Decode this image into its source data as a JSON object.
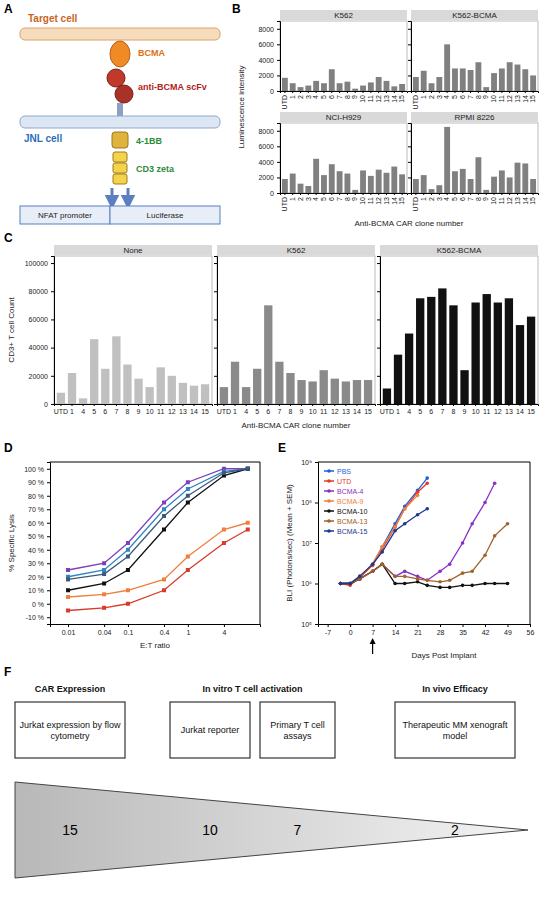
{
  "panel_letters": [
    "A",
    "B",
    "C",
    "D",
    "E",
    "F"
  ],
  "diagram_a": {
    "target_cell": "Target cell",
    "bcma": "BCMA",
    "scfv": "anti-BCMA scFv",
    "jnl_cell": "JNL cell",
    "costim": "4-1BB",
    "cd3": "CD3 zeta",
    "promoter": "NFAT promoter",
    "reporter": "Luciferase"
  },
  "chart_data": [
    {
      "type": "bar",
      "title": "K562",
      "categories": [
        "UTD",
        "1",
        "2",
        "3",
        "4",
        "5",
        "6",
        "7",
        "8",
        "9",
        "10",
        "11",
        "12",
        "13",
        "14",
        "15"
      ],
      "values": [
        1700,
        1000,
        500,
        700,
        1300,
        1000,
        2800,
        1000,
        1200,
        300,
        700,
        1100,
        1800,
        1300,
        600,
        900
      ],
      "color": "#808080",
      "ylim": [
        0,
        9000
      ],
      "yticks": [
        0,
        2000,
        4000,
        6000,
        8000
      ],
      "y_label": "Luminescence intensity",
      "x_label": "Anti-BCMA CAR clone number"
    },
    {
      "type": "bar",
      "title": "K562-BCMA",
      "categories": [
        "UTD",
        "1",
        "2",
        "3",
        "4",
        "5",
        "6",
        "7",
        "8",
        "9",
        "10",
        "11",
        "12",
        "13",
        "14",
        "15"
      ],
      "values": [
        1800,
        2600,
        1000,
        1800,
        6000,
        2900,
        2900,
        2700,
        3700,
        500,
        2300,
        2900,
        3700,
        3400,
        2800,
        2000
      ],
      "color": "#808080",
      "ylim": [
        0,
        9000
      ],
      "yticks": [
        0,
        2000,
        4000,
        6000,
        8000
      ],
      "tick_labels": "x"
    },
    {
      "type": "bar",
      "title": "NCI-H929",
      "categories": [
        "UTD",
        "1",
        "2",
        "3",
        "4",
        "5",
        "6",
        "7",
        "8",
        "9",
        "10",
        "11",
        "12",
        "13",
        "14",
        "15"
      ],
      "values": [
        1800,
        2500,
        1200,
        900,
        4400,
        2300,
        3700,
        2800,
        2500,
        400,
        2900,
        2200,
        3000,
        2600,
        3400,
        2400
      ],
      "color": "#808080",
      "ylim": [
        0,
        9000
      ],
      "yticks": [
        0,
        2000,
        4000,
        6000,
        8000
      ]
    },
    {
      "type": "bar",
      "title": "RPMI 8226",
      "categories": [
        "UTD",
        "1",
        "2",
        "3",
        "4",
        "5",
        "6",
        "7",
        "8",
        "9",
        "10",
        "11",
        "12",
        "13",
        "14",
        "15"
      ],
      "values": [
        1800,
        2300,
        500,
        1000,
        8500,
        2800,
        3100,
        1800,
        4600,
        400,
        2100,
        2900,
        2000,
        3900,
        3800,
        1800
      ],
      "color": "#808080",
      "ylim": [
        0,
        9000
      ],
      "yticks": [
        0,
        2000,
        4000,
        6000,
        8000
      ],
      "tick_labels": "x"
    },
    {
      "type": "bar",
      "title": "None",
      "categories": [
        "UTD",
        "1",
        "4",
        "5",
        "6",
        "7",
        "8",
        "9",
        "10",
        "11",
        "12",
        "13",
        "14",
        "15"
      ],
      "values": [
        8000,
        22000,
        4000,
        46000,
        25000,
        48000,
        28000,
        18000,
        12000,
        26000,
        20000,
        15000,
        13000,
        14000
      ],
      "color": "#c0c0c0",
      "ylim": [
        0,
        105000
      ],
      "yticks": [
        0,
        20000,
        40000,
        60000,
        80000,
        100000
      ],
      "y_label": "CD3+ T cell Count",
      "x_label": "Anti-BCMA CAR clone number"
    },
    {
      "type": "bar",
      "title": "K562",
      "categories": [
        "UTD",
        "1",
        "4",
        "5",
        "6",
        "7",
        "8",
        "9",
        "10",
        "11",
        "12",
        "13",
        "14",
        "15"
      ],
      "values": [
        12000,
        30000,
        12000,
        25000,
        70000,
        30000,
        22000,
        17000,
        16000,
        24000,
        18000,
        16000,
        17000,
        17000
      ],
      "color": "#8a8a8a",
      "ylim": [
        0,
        105000
      ],
      "yticks": [
        0,
        20000,
        40000,
        60000,
        80000,
        100000
      ],
      "tick_labels": "x"
    },
    {
      "type": "bar",
      "title": "K562-BCMA",
      "categories": [
        "UTD",
        "1",
        "4",
        "5",
        "6",
        "7",
        "8",
        "9",
        "10",
        "11",
        "12",
        "13",
        "14",
        "15"
      ],
      "values": [
        11000,
        35000,
        50000,
        75000,
        76000,
        82000,
        70000,
        24000,
        72000,
        78000,
        72000,
        75000,
        56000,
        62000
      ],
      "color": "#111111",
      "ylim": [
        0,
        105000
      ],
      "yticks": [
        0,
        20000,
        40000,
        60000,
        80000,
        100000
      ],
      "tick_labels": "x"
    },
    {
      "type": "line",
      "marker": "square",
      "log": "x",
      "x": [
        0.01,
        0.04,
        0.1,
        0.4,
        1,
        4,
        10
      ],
      "series": [
        {
          "color": "#7b3fbf",
          "values": [
            25,
            30,
            45,
            75,
            90,
            100,
            100
          ]
        },
        {
          "color": "#2f86c1",
          "values": [
            20,
            25,
            40,
            70,
            85,
            98,
            100
          ]
        },
        {
          "color": "#111111",
          "values": [
            10,
            15,
            25,
            55,
            75,
            95,
            100
          ]
        },
        {
          "color": "#3b5a7a",
          "values": [
            18,
            22,
            35,
            65,
            80,
            97,
            100
          ]
        },
        {
          "color": "#f07f3c",
          "values": [
            5,
            7,
            10,
            18,
            35,
            55,
            60
          ]
        },
        {
          "color": "#d93a2b",
          "values": [
            -5,
            -3,
            0,
            10,
            25,
            45,
            55
          ]
        }
      ],
      "xlim": [
        0.005,
        16
      ],
      "xticks": [
        0.01,
        0.04,
        0.1,
        0.4,
        1,
        4
      ],
      "ylim": [
        -15,
        105
      ],
      "yticks": [
        {
          "value": -10,
          "label": "-10 %"
        },
        {
          "value": 0,
          "label": "0 %"
        },
        {
          "value": 10,
          "label": "10 %"
        },
        {
          "value": 20,
          "label": "20 %"
        },
        {
          "value": 30,
          "label": "30 %"
        },
        {
          "value": 40,
          "label": "40 %"
        },
        {
          "value": 50,
          "label": "50 %"
        },
        {
          "value": 60,
          "label": "60 %"
        },
        {
          "value": 70,
          "label": "70 %"
        },
        {
          "value": 80,
          "label": "80 %"
        },
        {
          "value": 90,
          "label": "90 %"
        },
        {
          "value": 100,
          "label": "100 %"
        }
      ],
      "y_label": "% Specific Lysis",
      "x_label": "E:T ratio"
    },
    {
      "type": "line",
      "marker": "circle",
      "log": "y",
      "legend": "top-left",
      "x": [
        -3,
        0,
        3,
        7,
        10,
        14,
        17,
        21,
        24,
        28,
        31,
        35,
        38,
        42,
        45,
        49
      ],
      "series": [
        {
          "name": "PBS",
          "color": "#1f5fd6",
          "values": [
            1000000.0,
            1000000.0,
            1500000.0,
            3000000.0,
            8000000.0,
            30000000.0,
            80000000.0,
            200000000.0,
            400000000.0,
            null,
            null,
            null,
            null,
            null,
            null,
            null
          ]
        },
        {
          "name": "UTD",
          "color": "#e8392b",
          "values": [
            1000000.0,
            900000.0,
            1400000.0,
            2800000.0,
            7000000.0,
            25000000.0,
            70000000.0,
            180000000.0,
            300000000.0,
            null,
            null,
            null,
            null,
            null,
            null,
            null
          ]
        },
        {
          "name": "BCMA-4",
          "color": "#8b2fc9",
          "values": [
            1000000.0,
            1000000.0,
            1300000.0,
            2000000.0,
            3000000.0,
            1500000.0,
            2000000.0,
            1500000.0,
            1200000.0,
            2000000.0,
            3000000.0,
            10000000.0,
            30000000.0,
            100000000.0,
            300000000.0,
            null
          ]
        },
        {
          "name": "BCMA-9",
          "color": "#f07f3c",
          "values": [
            1000000.0,
            1000000.0,
            1500000.0,
            3000000.0,
            8000000.0,
            25000000.0,
            70000000.0,
            150000000.0,
            null,
            null,
            null,
            null,
            null,
            null,
            null,
            null
          ]
        },
        {
          "name": "BCMA-10",
          "color": "#111111",
          "values": [
            1000000.0,
            1000000.0,
            1300000.0,
            2000000.0,
            3000000.0,
            1000000.0,
            1000000.0,
            1100000.0,
            900000.0,
            800000.0,
            800000.0,
            900000.0,
            900000.0,
            1000000.0,
            1000000.0,
            1000000.0
          ]
        },
        {
          "name": "BCMA-13",
          "color": "#a0632a",
          "values": [
            1000000.0,
            1000000.0,
            1300000.0,
            2000000.0,
            3000000.0,
            1500000.0,
            1500000.0,
            1300000.0,
            1200000.0,
            1100000.0,
            1200000.0,
            1800000.0,
            2000000.0,
            5000000.0,
            15000000.0,
            30000000.0
          ]
        },
        {
          "name": "BCMA-15",
          "color": "#1b3a8c",
          "values": [
            1000000.0,
            1000000.0,
            1500000.0,
            3000000.0,
            6000000.0,
            20000000.0,
            30000000.0,
            50000000.0,
            70000000.0,
            null,
            null,
            null,
            null,
            null,
            null,
            null
          ]
        }
      ],
      "xlim": [
        -10,
        56
      ],
      "xticks": [
        -7,
        0,
        7,
        14,
        21,
        28,
        35,
        42,
        49,
        56
      ],
      "ylim": [
        100000.0,
        1000000000.0
      ],
      "yticks": [
        {
          "value": 100000.0,
          "label": "10⁵"
        },
        {
          "value": 1000000.0,
          "label": "10⁶"
        },
        {
          "value": 10000000.0,
          "label": "10⁷"
        },
        {
          "value": 100000000.0,
          "label": "10⁸"
        },
        {
          "value": 1000000000.0,
          "label": "10⁹"
        }
      ],
      "y_label": "BLI (Photons/sec) (Mean + SEM)",
      "x_label": "Days Post Implant",
      "arrow_day": 7
    }
  ],
  "diagram_f": {
    "stages": [
      {
        "title": "CAR Expression",
        "boxes": [
          "Jurkat expression by flow cytometry"
        ]
      },
      {
        "title": "In vitro T cell activation",
        "boxes": [
          "Jurkat reporter",
          "Primary T cell assays"
        ]
      },
      {
        "title": "In vivo Efficacy",
        "boxes": [
          "Therapeutic MM xenograft model"
        ]
      }
    ],
    "counts": [
      15,
      10,
      7,
      2
    ]
  }
}
